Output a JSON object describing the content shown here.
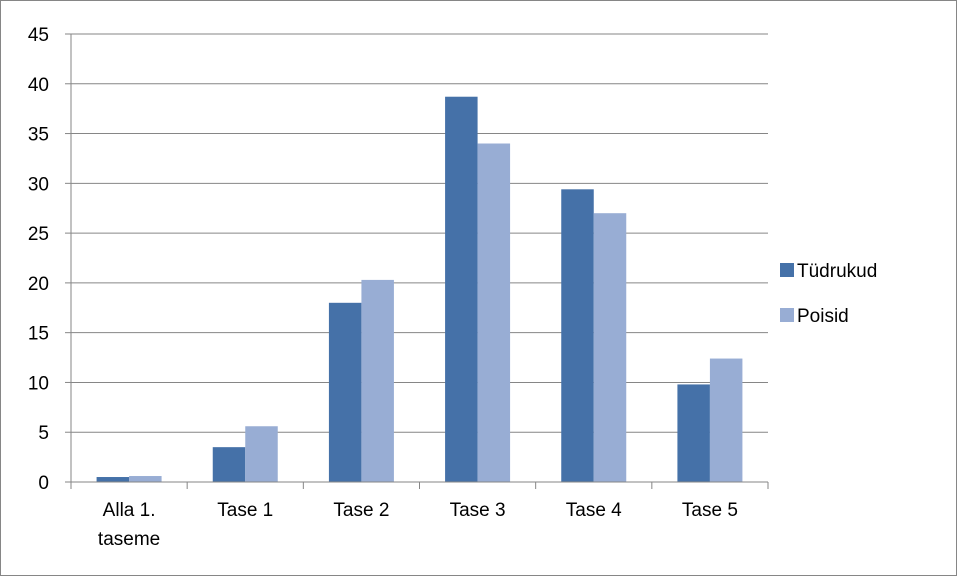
{
  "chart_data": {
    "type": "bar",
    "categories": [
      [
        "Alla 1.",
        "taseme"
      ],
      [
        "Tase 1"
      ],
      [
        "Tase 2"
      ],
      [
        "Tase 3"
      ],
      [
        "Tase 4"
      ],
      [
        "Tase 5"
      ]
    ],
    "series": [
      {
        "name": "Tüdrukud",
        "color": "#4571A8",
        "values": [
          0.5,
          3.5,
          18,
          38.7,
          29.4,
          9.8
        ]
      },
      {
        "name": "Poisid",
        "color": "#98ADD4",
        "values": [
          0.6,
          5.6,
          20.3,
          34,
          27,
          12.4
        ]
      }
    ],
    "ylim": [
      0,
      45
    ],
    "yticks": [
      0,
      5,
      10,
      15,
      20,
      25,
      30,
      35,
      40,
      45
    ],
    "grid": true,
    "legend_position": "right",
    "title": "",
    "xlabel": "",
    "ylabel": ""
  }
}
